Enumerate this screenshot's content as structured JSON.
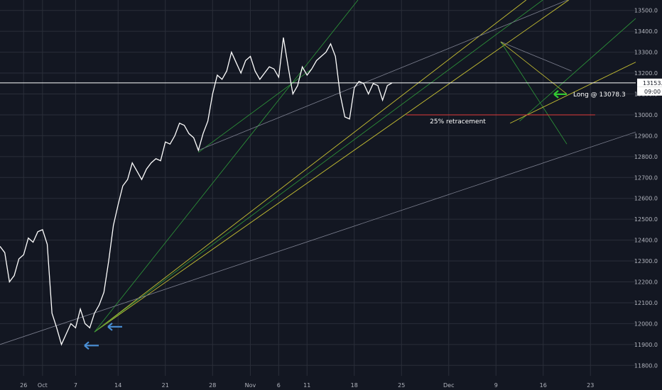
{
  "chart_data": {
    "type": "line",
    "title": "",
    "xlabel": "",
    "ylabel": "",
    "ylim": [
      11750,
      13550
    ],
    "x_ticks": [
      {
        "label": "26",
        "i": 5
      },
      {
        "label": "Oct",
        "i": 9
      },
      {
        "label": "7",
        "i": 16
      },
      {
        "label": "14",
        "i": 25
      },
      {
        "label": "21",
        "i": 35
      },
      {
        "label": "28",
        "i": 45
      },
      {
        "label": "Nov",
        "i": 53
      },
      {
        "label": "6",
        "i": 59
      },
      {
        "label": "11",
        "i": 65
      },
      {
        "label": "18",
        "i": 75
      },
      {
        "label": "25",
        "i": 85
      },
      {
        "label": "Dec",
        "i": 95
      },
      {
        "label": "9",
        "i": 105
      },
      {
        "label": "16",
        "i": 115
      },
      {
        "label": "23",
        "i": 125
      }
    ],
    "y_ticks": [
      11800,
      11900,
      12000,
      12100,
      12200,
      12300,
      12400,
      12500,
      12600,
      12700,
      12800,
      12900,
      13000,
      13100,
      13200,
      13300,
      13400,
      13500
    ],
    "y_tick_labels": [
      "11800.0",
      "11900.0",
      "12000.0",
      "12100.0",
      "12200.0",
      "12300.0",
      "12400.0",
      "12500.0",
      "12600.0",
      "12700.0",
      "12800.0",
      "12900.0",
      "13000.0",
      "13100.0",
      "13200.0",
      "13300.0",
      "13400.0",
      "13500.0"
    ],
    "series": [
      {
        "values": [
          12370,
          12340,
          12200,
          12230,
          12310,
          12330,
          12410,
          12390,
          12440,
          12450,
          12380,
          12050,
          11980,
          11900,
          11950,
          12000,
          11980,
          12070,
          12000,
          11980,
          12050,
          12090,
          12150,
          12300,
          12470,
          12570,
          12660,
          12690,
          12770,
          12730,
          12690,
          12740,
          12770,
          12790,
          12780,
          12870,
          12860,
          12900,
          12960,
          12950,
          12910,
          12890,
          12830,
          12910,
          12970,
          13100,
          13190,
          13170,
          13210,
          13300,
          13250,
          13200,
          13260,
          13280,
          13210,
          13170,
          13200,
          13230,
          13220,
          13180,
          13370,
          13230,
          13100,
          13140,
          13230,
          13190,
          13220,
          13260,
          13280,
          13300,
          13340,
          13280,
          13100,
          12990,
          12980,
          13130,
          13160,
          13150,
          13100,
          13150,
          13140,
          13070,
          13140,
          13153
        ]
      }
    ],
    "price_label": "13153.2",
    "countdown_label": "09:00",
    "horizontal_level": 13153.2,
    "retracement": {
      "label": "25% retracement",
      "price": 13000
    },
    "trade_note": {
      "label": "Long @ 13078.3",
      "price": 13078.3
    },
    "colors": {
      "background": "#131722",
      "grid": "#2a2e39",
      "price_line": "#ffffff",
      "yellow_fan": "#c9c232",
      "green_fan": "#2e9b3a",
      "gray_line": "#7d8090",
      "retracement": "#e03b3b",
      "arrow_blue": "#4a8fd6",
      "arrow_green": "#32c832"
    }
  }
}
